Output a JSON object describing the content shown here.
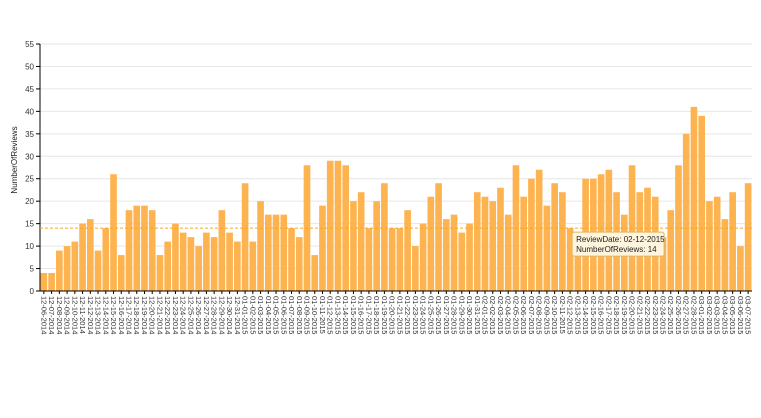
{
  "chart_data": {
    "type": "bar",
    "ylabel": "NumberOfReviews",
    "xlabel": "",
    "ylim": [
      0,
      55
    ],
    "yticks": [
      0,
      5,
      10,
      15,
      20,
      25,
      30,
      35,
      40,
      45,
      50,
      55
    ],
    "grid": true,
    "categories": [
      "12-06-2014",
      "12-07-2014",
      "12-08-2014",
      "12-09-2014",
      "12-10-2014",
      "12-11-2014",
      "12-12-2014",
      "12-13-2014",
      "12-14-2014",
      "12-15-2014",
      "12-16-2014",
      "12-17-2014",
      "12-18-2014",
      "12-19-2014",
      "12-20-2014",
      "12-21-2014",
      "12-22-2014",
      "12-23-2014",
      "12-24-2014",
      "12-25-2014",
      "12-26-2014",
      "12-27-2014",
      "12-28-2014",
      "12-29-2014",
      "12-30-2014",
      "12-31-2014",
      "01-01-2015",
      "01-02-2015",
      "01-03-2015",
      "01-04-2015",
      "01-05-2015",
      "01-06-2015",
      "01-07-2015",
      "01-08-2015",
      "01-09-2015",
      "01-10-2015",
      "01-11-2015",
      "01-12-2015",
      "01-13-2015",
      "01-14-2015",
      "01-15-2015",
      "01-16-2015",
      "01-17-2015",
      "01-18-2015",
      "01-19-2015",
      "01-20-2015",
      "01-21-2015",
      "01-22-2015",
      "01-23-2015",
      "01-24-2015",
      "01-25-2015",
      "01-26-2015",
      "01-27-2015",
      "01-28-2015",
      "01-29-2015",
      "01-30-2015",
      "01-31-2015",
      "02-01-2015",
      "02-02-2015",
      "02-03-2015",
      "02-04-2015",
      "02-05-2015",
      "02-06-2015",
      "02-07-2015",
      "02-08-2015",
      "02-09-2015",
      "02-10-2015",
      "02-11-2015",
      "02-12-2015",
      "02-13-2015",
      "02-14-2015",
      "02-15-2015",
      "02-16-2015",
      "02-17-2015",
      "02-18-2015",
      "02-19-2015",
      "02-20-2015",
      "02-21-2015",
      "02-22-2015",
      "02-23-2015",
      "02-24-2015",
      "02-25-2015",
      "02-26-2015",
      "02-27-2015",
      "02-28-2015",
      "03-01-2015",
      "03-02-2015",
      "03-03-2015",
      "03-04-2015",
      "03-05-2015",
      "03-06-2015",
      "03-07-2015"
    ],
    "x_tick_labels": [
      "12-06-2014",
      "12-07-2014",
      "12-08-2014",
      "12-09-2014",
      "12-10-2014",
      "12-11-2014",
      "12-12-2014",
      "12-13-2014",
      "12-14-2014",
      "12-15-2014",
      "12-16-2014",
      "12-17-2014",
      "12-18-2014",
      "12-19-2014",
      "12-20-2014",
      "12-21-2014",
      "12-22-2014",
      "12-23-2014",
      "12-24-2014",
      "12-25-2014",
      "12-26-2014",
      "12-27-2014",
      "12-28-2014",
      "12-29-2014",
      "12-30-2014",
      "12-31-2014",
      "01-01-2015",
      "01-02-2015",
      "01-03-2015",
      "01-04-2015",
      "01-05-2015",
      "01-06-2015",
      "01-07-2015",
      "01-08-2015",
      "01-09-2015",
      "01-10-2015",
      "01-11-2015",
      "01-12-2015",
      "01-13-2015",
      "01-14-2015",
      "01-15-2015",
      "01-16-2015",
      "01-17-2015",
      "01-18-2015",
      "01-19-2015",
      "01-20-2015",
      "01-21-2015",
      "01-22-2015",
      "01-23-2015",
      "01-24-2015",
      "01-25-2015",
      "01-26-2015",
      "01-27-2015",
      "01-28-2015",
      "01-29-2015",
      "01-30-2015",
      "01-31-2015",
      "02-01-2015",
      "02-02-2015",
      "02-03-2015",
      "02-04-2015",
      "02-05-2015",
      "02-06-2015",
      "02-07-2015",
      "02-08-2015",
      "02-09-2015",
      "02-10-2015",
      "02-11-2015",
      "02-12-2015",
      "02-13-2015",
      "02-14-2015",
      "02-15-2015",
      "02-16-2015",
      "02-17-2015",
      "02-18-2015",
      "02-19-2015",
      "02-20-2015",
      "02-21-2015",
      "02-22-2015",
      "02-23-2015",
      "02-24-2015",
      "02-25-2015",
      "02-26-2015",
      "02-27-2015",
      "02-28-2015",
      "03-01-2015",
      "03-02-2015",
      "03-03-2015",
      "03-04-2015",
      "03-05-2015",
      "03-06-2015",
      "03-07-2015"
    ],
    "values": [
      4,
      4,
      9,
      10,
      11,
      15,
      16,
      9,
      14,
      26,
      8,
      18,
      19,
      19,
      18,
      8,
      11,
      15,
      13,
      12,
      10,
      13,
      12,
      18,
      13,
      11,
      24,
      11,
      20,
      17,
      17,
      17,
      14,
      12,
      28,
      8,
      19,
      29,
      29,
      28,
      20,
      22,
      14,
      20,
      24,
      14,
      14,
      18,
      10,
      15,
      21,
      24,
      16,
      17,
      13,
      15,
      22,
      21,
      20,
      23,
      17,
      28,
      21,
      25,
      27,
      19,
      24,
      22,
      14,
      13,
      25,
      25,
      26,
      27,
      22,
      17,
      28,
      22,
      23,
      21,
      12,
      18,
      28,
      35,
      41,
      39,
      20,
      21,
      16,
      22,
      10,
      24
    ],
    "bar_color": "#FDB450",
    "reference_line": {
      "value": 14,
      "color": "#f5a623"
    },
    "tooltip": {
      "line1": "ReviewDate: 02-12-2015",
      "line2": "NumberOfReviews: 14",
      "category": "02-12-2015"
    }
  }
}
